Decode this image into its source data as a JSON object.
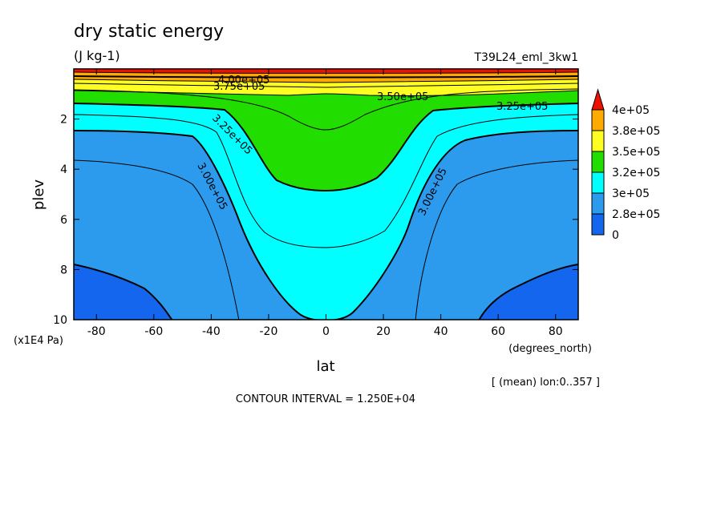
{
  "chart_data": {
    "type": "heatmap",
    "title": "dry static energy",
    "units": "(J kg-1)",
    "run_label": "T39L24_eml_3kw1",
    "xlabel": "lat",
    "xunits": "(degrees_north)",
    "ylabel": "plev",
    "yunits": "(x1E4 Pa)",
    "xlim": [
      -87.9,
      87.9
    ],
    "ylim": [
      10,
      0
    ],
    "xticks": [
      -80,
      -60,
      -40,
      -20,
      0,
      20,
      40,
      60,
      80
    ],
    "xtick_labels": [
      "-80",
      "-60",
      "-40",
      "-20",
      "0",
      "20",
      "40",
      "60",
      "80"
    ],
    "yticks": [
      2,
      4,
      6,
      8,
      10
    ],
    "ytick_labels": [
      "2",
      "4",
      "6",
      "8",
      "10"
    ],
    "reduction_note": "[ (mean) lon:0..357 ]",
    "contour_interval": "CONTOUR INTERVAL = 1.250E+04",
    "levels": [
      {
        "label": "0",
        "color": "#1466ee"
      },
      {
        "label": "2.8e+05",
        "color": "#2c9bee"
      },
      {
        "label": "3e+05",
        "color": "#00ffff"
      },
      {
        "label": "3.2e+05",
        "color": "#22dd00"
      },
      {
        "label": "3.5e+05",
        "color": "#fefe22"
      },
      {
        "label": "3.8e+05",
        "color": "#ffaa00"
      },
      {
        "label": "4e+05",
        "color": "#ee1100"
      }
    ],
    "contour_labels": [
      {
        "text": "4.00e+05"
      },
      {
        "text": "3.75e+05"
      },
      {
        "text": "3.50e+05"
      },
      {
        "text": "3.25e+05"
      },
      {
        "text": "3.25e+05"
      },
      {
        "text": "3.00e+05"
      },
      {
        "text": "3.00e+05"
      }
    ],
    "colors": {
      "deep_blue": "#1466ee",
      "mid_blue": "#2c9bee",
      "cyan": "#00ffff",
      "green": "#22dd00",
      "yellow": "#fefe22",
      "orange": "#ffaa00",
      "red": "#ee1100"
    }
  }
}
